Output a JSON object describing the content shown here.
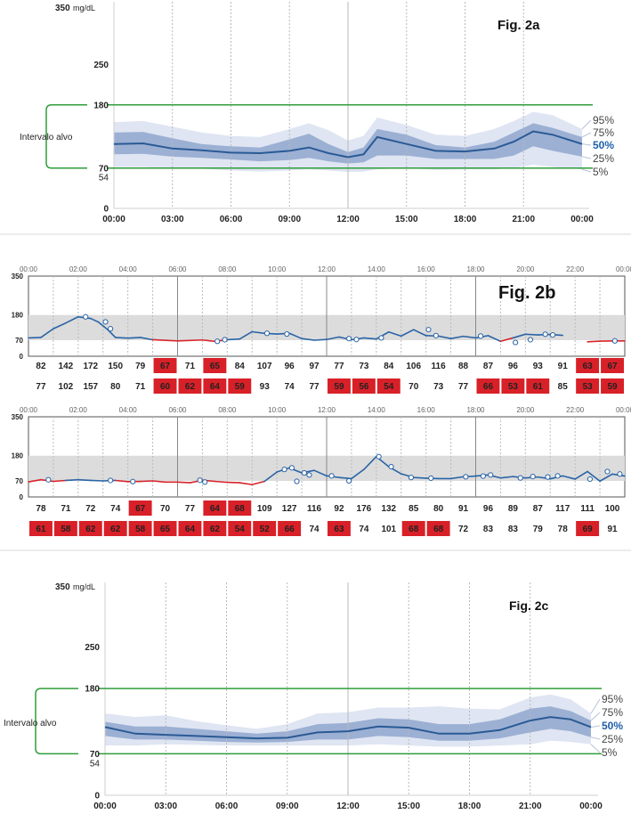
{
  "colors": {
    "target": "#2e9e3a",
    "band95": "#dfe5f2",
    "band75": "#9cb0d4",
    "median": "#2a5a94",
    "pct50": "#1f5fa8",
    "high_line": "#2a64a6",
    "low_line": "#d6242b",
    "low_box": "#d82028",
    "range_band": "#dcdcdc",
    "sep": "#d9d9d9"
  },
  "chart_data": [
    {
      "type": "area",
      "id": "2a",
      "title": "Fig. 2a",
      "y_top_label": "350",
      "y_unit": "mg/dL",
      "yticks": [
        0,
        54,
        70,
        180,
        250
      ],
      "ylim": [
        0,
        350
      ],
      "xticks": [
        "00:00",
        "03:00",
        "06:00",
        "09:00",
        "12:00",
        "15:00",
        "18:00",
        "21:00",
        "00:00"
      ],
      "xlim": [
        0,
        24
      ],
      "target_range": [
        70,
        180
      ],
      "target_label": "Intervalo alvo",
      "percentile_labels": [
        "95%",
        "75%",
        "50%",
        "25%",
        "5%"
      ],
      "x": [
        0,
        1.5,
        3,
        4.5,
        6,
        7.5,
        9,
        10,
        11,
        12,
        12.8,
        13.5,
        15,
        16.5,
        18,
        19.5,
        20.5,
        21.5,
        22.5,
        24
      ],
      "p95": [
        150,
        152,
        142,
        132,
        126,
        124,
        138,
        148,
        136,
        118,
        126,
        158,
        145,
        128,
        126,
        138,
        152,
        168,
        162,
        138
      ],
      "p75": [
        132,
        133,
        122,
        112,
        108,
        106,
        120,
        130,
        112,
        98,
        106,
        138,
        128,
        110,
        106,
        116,
        132,
        148,
        140,
        124
      ],
      "p50": [
        112,
        113,
        104,
        101,
        97,
        96,
        100,
        106,
        96,
        89,
        94,
        124,
        112,
        100,
        99,
        104,
        116,
        134,
        128,
        112
      ],
      "p25": [
        94,
        95,
        90,
        88,
        85,
        82,
        84,
        88,
        82,
        78,
        80,
        92,
        92,
        86,
        86,
        86,
        92,
        108,
        100,
        90
      ],
      "p5": [
        72,
        72,
        70,
        69,
        66,
        64,
        66,
        68,
        66,
        63,
        64,
        68,
        70,
        67,
        68,
        68,
        70,
        76,
        72,
        68
      ]
    },
    {
      "type": "line",
      "id": "2b-1",
      "title": "Fig. 2b",
      "xticks": [
        "00:00",
        "02:00",
        "04:00",
        "06:00",
        "08:00",
        "10:00",
        "12:00",
        "14:00",
        "16:00",
        "18:00",
        "20:00",
        "22:00",
        "00:00"
      ],
      "xlim": [
        0,
        24
      ],
      "yticks": [
        0,
        70,
        180,
        350
      ],
      "ylim": [
        0,
        350
      ],
      "target_range": [
        70,
        180
      ],
      "x": [
        0,
        0.5,
        1,
        1.5,
        2,
        2.5,
        2.8,
        3.2,
        3.5,
        4,
        4.5,
        5,
        6,
        7,
        7.5,
        8,
        8.5,
        9,
        9.5,
        10,
        10.5,
        11,
        11.5,
        12,
        12.5,
        13,
        13.5,
        14,
        14.5,
        15,
        15.5,
        16,
        16.5,
        17,
        17.5,
        18,
        18.5,
        19,
        19.5,
        20,
        20.5,
        21,
        21.5,
        22.5,
        23,
        23.5,
        24
      ],
      "y": [
        80,
        82,
        120,
        145,
        172,
        165,
        150,
        115,
        82,
        79,
        82,
        72,
        67,
        71,
        65,
        72,
        75,
        107,
        100,
        97,
        100,
        77,
        70,
        73,
        84,
        72,
        80,
        75,
        106,
        88,
        116,
        90,
        88,
        77,
        87,
        80,
        90,
        65,
        80,
        96,
        93,
        95,
        91,
        63,
        66,
        67,
        67
      ],
      "low_threshold": 70,
      "gaps": [
        [
          21.8,
          22.4
        ]
      ],
      "markers": [
        [
          2.3,
          172
        ],
        [
          3.1,
          150
        ],
        [
          3.3,
          120
        ],
        [
          7.6,
          65
        ],
        [
          7.9,
          72
        ],
        [
          9.6,
          100
        ],
        [
          10.4,
          97
        ],
        [
          12.9,
          77
        ],
        [
          13.2,
          73
        ],
        [
          14.2,
          80
        ],
        [
          16.1,
          116
        ],
        [
          16.4,
          90
        ],
        [
          18.2,
          88
        ],
        [
          19.6,
          60
        ],
        [
          20.2,
          72
        ],
        [
          20.8,
          96
        ],
        [
          21.1,
          93
        ],
        [
          23.6,
          67
        ]
      ],
      "row1": [
        {
          "v": "82",
          "low": false
        },
        {
          "v": "142",
          "low": false
        },
        {
          "v": "172",
          "low": false
        },
        {
          "v": "150",
          "low": false
        },
        {
          "v": "79",
          "low": false
        },
        {
          "v": "67",
          "low": true
        },
        {
          "v": "71",
          "low": false
        },
        {
          "v": "65",
          "low": true
        },
        {
          "v": "84",
          "low": false
        },
        {
          "v": "107",
          "low": false
        },
        {
          "v": "96",
          "low": false
        },
        {
          "v": "97",
          "low": false
        },
        {
          "v": "77",
          "low": false
        },
        {
          "v": "73",
          "low": false
        },
        {
          "v": "84",
          "low": false
        },
        {
          "v": "106",
          "low": false
        },
        {
          "v": "116",
          "low": false
        },
        {
          "v": "88",
          "low": false
        },
        {
          "v": "87",
          "low": false
        },
        {
          "v": "96",
          "low": false
        },
        {
          "v": "93",
          "low": false
        },
        {
          "v": "91",
          "low": false
        },
        {
          "v": "63",
          "low": true
        },
        {
          "v": "67",
          "low": true
        }
      ],
      "row2": [
        {
          "v": "77",
          "low": false
        },
        {
          "v": "102",
          "low": false
        },
        {
          "v": "157",
          "low": false
        },
        {
          "v": "80",
          "low": false
        },
        {
          "v": "71",
          "low": false
        },
        {
          "v": "60",
          "low": true
        },
        {
          "v": "62",
          "low": true
        },
        {
          "v": "64",
          "low": true
        },
        {
          "v": "59",
          "low": true
        },
        {
          "v": "93",
          "low": false
        },
        {
          "v": "74",
          "low": false
        },
        {
          "v": "77",
          "low": false
        },
        {
          "v": "59",
          "low": true
        },
        {
          "v": "56",
          "low": true
        },
        {
          "v": "54",
          "low": true
        },
        {
          "v": "70",
          "low": false
        },
        {
          "v": "73",
          "low": false
        },
        {
          "v": "77",
          "low": false
        },
        {
          "v": "66",
          "low": true
        },
        {
          "v": "53",
          "low": true
        },
        {
          "v": "61",
          "low": true
        },
        {
          "v": "85",
          "low": false
        },
        {
          "v": "53",
          "low": true
        },
        {
          "v": "59",
          "low": true
        }
      ]
    },
    {
      "type": "line",
      "id": "2b-2",
      "title": "",
      "xticks": [
        "00:00",
        "02:00",
        "04:00",
        "06:00",
        "08:00",
        "10:00",
        "12:00",
        "14:00",
        "16:00",
        "18:00",
        "20:00",
        "22:00",
        "00:00"
      ],
      "xlim": [
        0,
        24
      ],
      "yticks": [
        0,
        70,
        180,
        350
      ],
      "ylim": [
        0,
        350
      ],
      "target_range": [
        70,
        180
      ],
      "x": [
        0,
        0.5,
        1,
        1.5,
        2,
        2.5,
        3,
        3.5,
        4,
        4.5,
        5,
        5.5,
        6,
        6.5,
        7,
        7.5,
        8,
        8.5,
        9,
        9.5,
        10,
        10.5,
        11,
        11.5,
        12,
        12.5,
        13,
        13.5,
        14,
        14.5,
        15,
        15.5,
        16,
        16.5,
        17,
        17.5,
        18,
        18.5,
        19,
        19.5,
        20,
        20.5,
        21,
        21.5,
        22,
        22.5,
        23,
        23.5,
        24
      ],
      "y": [
        66,
        75,
        68,
        72,
        75,
        72,
        70,
        72,
        67,
        68,
        70,
        65,
        65,
        62,
        73,
        68,
        64,
        62,
        54,
        68,
        109,
        127,
        105,
        116,
        92,
        85,
        80,
        120,
        176,
        132,
        101,
        85,
        82,
        80,
        80,
        88,
        91,
        96,
        83,
        89,
        83,
        87,
        79,
        92,
        78,
        111,
        69,
        100,
        91
      ],
      "low_threshold": 70,
      "gaps": [],
      "markers": [
        [
          0.8,
          75
        ],
        [
          3.3,
          72
        ],
        [
          4.2,
          67
        ],
        [
          6.9,
          73
        ],
        [
          7.1,
          65
        ],
        [
          10.3,
          120
        ],
        [
          10.6,
          127
        ],
        [
          10.8,
          68
        ],
        [
          11.1,
          105
        ],
        [
          11.3,
          96
        ],
        [
          12.2,
          92
        ],
        [
          12.9,
          70
        ],
        [
          14.1,
          176
        ],
        [
          14.6,
          132
        ],
        [
          15.4,
          85
        ],
        [
          16.2,
          82
        ],
        [
          17.6,
          88
        ],
        [
          18.3,
          91
        ],
        [
          18.6,
          96
        ],
        [
          19.8,
          83
        ],
        [
          20.3,
          89
        ],
        [
          20.9,
          87
        ],
        [
          21.3,
          92
        ],
        [
          22.6,
          78
        ],
        [
          23.3,
          111
        ],
        [
          23.8,
          100
        ]
      ],
      "row1": [
        {
          "v": "78",
          "low": false
        },
        {
          "v": "71",
          "low": false
        },
        {
          "v": "72",
          "low": false
        },
        {
          "v": "74",
          "low": false
        },
        {
          "v": "67",
          "low": true
        },
        {
          "v": "70",
          "low": false
        },
        {
          "v": "77",
          "low": false
        },
        {
          "v": "64",
          "low": true
        },
        {
          "v": "68",
          "low": true
        },
        {
          "v": "109",
          "low": false
        },
        {
          "v": "127",
          "low": false
        },
        {
          "v": "116",
          "low": false
        },
        {
          "v": "92",
          "low": false
        },
        {
          "v": "176",
          "low": false
        },
        {
          "v": "132",
          "low": false
        },
        {
          "v": "85",
          "low": false
        },
        {
          "v": "80",
          "low": false
        },
        {
          "v": "91",
          "low": false
        },
        {
          "v": "96",
          "low": false
        },
        {
          "v": "89",
          "low": false
        },
        {
          "v": "87",
          "low": false
        },
        {
          "v": "117",
          "low": false
        },
        {
          "v": "111",
          "low": false
        },
        {
          "v": "100",
          "low": false
        }
      ],
      "row2": [
        {
          "v": "61",
          "low": true
        },
        {
          "v": "58",
          "low": true
        },
        {
          "v": "62",
          "low": true
        },
        {
          "v": "62",
          "low": true
        },
        {
          "v": "58",
          "low": true
        },
        {
          "v": "65",
          "low": true
        },
        {
          "v": "64",
          "low": true
        },
        {
          "v": "62",
          "low": true
        },
        {
          "v": "54",
          "low": true
        },
        {
          "v": "52",
          "low": true
        },
        {
          "v": "66",
          "low": true
        },
        {
          "v": "74",
          "low": false
        },
        {
          "v": "63",
          "low": true
        },
        {
          "v": "74",
          "low": false
        },
        {
          "v": "101",
          "low": false
        },
        {
          "v": "68",
          "low": true
        },
        {
          "v": "68",
          "low": true
        },
        {
          "v": "72",
          "low": false
        },
        {
          "v": "83",
          "low": false
        },
        {
          "v": "83",
          "low": false
        },
        {
          "v": "79",
          "low": false
        },
        {
          "v": "78",
          "low": false
        },
        {
          "v": "69",
          "low": true
        },
        {
          "v": "91",
          "low": false
        }
      ]
    },
    {
      "type": "area",
      "id": "2c",
      "title": "Fig. 2c",
      "y_top_label": "350",
      "y_unit": "mg/dL",
      "yticks": [
        0,
        54,
        70,
        180,
        250
      ],
      "ylim": [
        0,
        350
      ],
      "xticks": [
        "00:00",
        "03:00",
        "06:00",
        "09:00",
        "12:00",
        "15:00",
        "18:00",
        "21:00",
        "00:00"
      ],
      "xlim": [
        0,
        24
      ],
      "target_range": [
        70,
        180
      ],
      "target_label": "Intervalo alvo",
      "percentile_labels": [
        "95%",
        "75%",
        "50%",
        "25%",
        "5%"
      ],
      "x": [
        0,
        1.5,
        3,
        4.5,
        6,
        7.5,
        9,
        10.5,
        12,
        13.5,
        15,
        16.5,
        18,
        19.5,
        21,
        22,
        23,
        24
      ],
      "p95": [
        138,
        132,
        135,
        125,
        118,
        112,
        120,
        138,
        140,
        148,
        148,
        150,
        146,
        145,
        165,
        170,
        162,
        138
      ],
      "p75": [
        124,
        116,
        116,
        112,
        108,
        104,
        108,
        120,
        122,
        130,
        128,
        120,
        120,
        128,
        146,
        150,
        142,
        126
      ],
      "p50": [
        115,
        104,
        102,
        100,
        98,
        96,
        97,
        106,
        108,
        116,
        114,
        104,
        104,
        110,
        126,
        132,
        128,
        115
      ],
      "p25": [
        100,
        94,
        94,
        92,
        90,
        89,
        90,
        94,
        94,
        100,
        98,
        92,
        92,
        96,
        106,
        112,
        108,
        98
      ],
      "p5": [
        84,
        84,
        86,
        85,
        84,
        84,
        84,
        84,
        84,
        86,
        84,
        82,
        82,
        84,
        86,
        92,
        90,
        86
      ]
    }
  ]
}
